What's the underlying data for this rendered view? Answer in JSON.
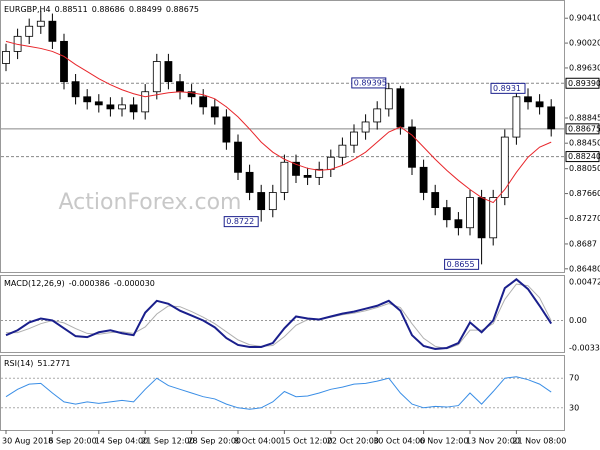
{
  "chart_data": {
    "type": "candlestick",
    "header": {
      "symbol": "EURGBP,H4",
      "ohlc": [
        0.88511,
        0.88686,
        0.88499,
        0.88675
      ]
    },
    "watermark": "ActionForex.com",
    "x": [
      "30 Aug 2018",
      null,
      null,
      null,
      "6 Sep 20:00",
      null,
      null,
      null,
      "14 Sep 04:00",
      null,
      null,
      null,
      "21 Sep 12:00",
      null,
      null,
      null,
      "28 Sep 20:00",
      null,
      null,
      null,
      "8 Oct 04:00",
      null,
      null,
      null,
      "15 Oct 12:00",
      null,
      null,
      null,
      "22 Oct 20:00",
      null,
      null,
      null,
      "30 Oct 04:00",
      null,
      null,
      null,
      "6 Nov 12:00",
      null,
      null,
      null,
      "13 Nov 20:00",
      null,
      null,
      null,
      "21 Nov 08:00",
      null,
      null,
      null
    ],
    "open": [
      0.897,
      0.89889,
      0.90126,
      0.90284,
      0.90363,
      0.90047,
      0.89415,
      0.89178,
      0.89099,
      0.89051,
      0.88988,
      0.89051,
      0.88941,
      0.89257,
      0.89731,
      0.89415,
      0.89257,
      0.89178,
      0.8902,
      0.88862,
      0.88467,
      0.87993,
      0.87677,
      0.87408,
      0.87677,
      0.88151,
      0.87945,
      0.87914,
      0.8804,
      0.8823,
      0.88419,
      0.88625,
      0.88783,
      0.88988,
      0.89304,
      0.88704,
      0.88072,
      0.87677,
      0.8744,
      0.8725,
      0.87124,
      0.87598,
      0.86966,
      0.87598,
      0.88546,
      0.89178,
      0.89099,
      0.8902
    ],
    "high": [
      0.90009,
      0.90246,
      0.90404,
      0.9053,
      0.90483,
      0.90167,
      0.89535,
      0.89298,
      0.89219,
      0.89171,
      0.89171,
      0.89171,
      0.89377,
      0.89851,
      0.89851,
      0.89535,
      0.89377,
      0.89298,
      0.8914,
      0.88982,
      0.88587,
      0.88113,
      0.87797,
      0.87797,
      0.88271,
      0.88271,
      0.88065,
      0.8816,
      0.8835,
      0.88539,
      0.88745,
      0.88903,
      0.89108,
      0.89395,
      0.8935,
      0.88824,
      0.88192,
      0.87797,
      0.8756,
      0.8737,
      0.87718,
      0.87718,
      0.87718,
      0.88666,
      0.89298,
      0.8931,
      0.89219,
      0.8914
    ],
    "low": [
      0.8958,
      0.89769,
      0.90006,
      0.90164,
      0.89927,
      0.89295,
      0.89058,
      0.88979,
      0.88931,
      0.88868,
      0.88868,
      0.88821,
      0.88821,
      0.89137,
      0.89295,
      0.89137,
      0.89058,
      0.889,
      0.88742,
      0.88347,
      0.87873,
      0.87557,
      0.8722,
      0.87288,
      0.87557,
      0.87825,
      0.87794,
      0.87794,
      0.8792,
      0.8811,
      0.88299,
      0.88505,
      0.88663,
      0.88868,
      0.88584,
      0.87952,
      0.87557,
      0.8732,
      0.8713,
      0.87004,
      0.87004,
      0.8655,
      0.86846,
      0.87478,
      0.88426,
      0.88979,
      0.889,
      0.88555
    ],
    "close": [
      0.89889,
      0.90126,
      0.90284,
      0.90363,
      0.90047,
      0.89415,
      0.89178,
      0.89099,
      0.89051,
      0.88988,
      0.89051,
      0.88941,
      0.89257,
      0.89731,
      0.89415,
      0.89257,
      0.89178,
      0.8902,
      0.88862,
      0.88467,
      0.87993,
      0.87677,
      0.87408,
      0.87677,
      0.88151,
      0.87945,
      0.87914,
      0.8804,
      0.8823,
      0.88419,
      0.88625,
      0.88783,
      0.88988,
      0.89304,
      0.88704,
      0.88072,
      0.87677,
      0.8744,
      0.8725,
      0.87124,
      0.87598,
      0.86966,
      0.87598,
      0.88546,
      0.89178,
      0.89099,
      0.8902,
      0.88675
    ],
    "ma": {
      "color": "#e8262b",
      "values": [
        0.90047,
        0.89999,
        0.89968,
        0.89936,
        0.89889,
        0.8981,
        0.89683,
        0.89573,
        0.89462,
        0.89367,
        0.89288,
        0.89225,
        0.89178,
        0.89209,
        0.89241,
        0.89257,
        0.89241,
        0.89209,
        0.89146,
        0.8902,
        0.88862,
        0.88672,
        0.88467,
        0.88309,
        0.88198,
        0.88119,
        0.88056,
        0.88024,
        0.8804,
        0.88103,
        0.88198,
        0.88309,
        0.88467,
        0.88625,
        0.88704,
        0.88577,
        0.88388,
        0.88198,
        0.88024,
        0.87866,
        0.87724,
        0.87598,
        0.87519,
        0.87724,
        0.87993,
        0.8823,
        0.88388,
        0.88467
      ]
    },
    "ylim": [
      0.8643,
      0.9068
    ],
    "yticks": [
      {
        "value": 0.9041,
        "label": "0.90410"
      },
      {
        "value": 0.9002,
        "label": "0.90020"
      },
      {
        "value": 0.8963,
        "label": "0.89630"
      },
      0.88845,
      {
        "value": 0.8845,
        "label": "0.88450"
      },
      {
        "value": 0.8805,
        "label": "0.88050"
      },
      {
        "value": 0.8766,
        "label": "0.87660"
      },
      {
        "value": 0.8727,
        "label": "0.87270"
      },
      0.8687,
      {
        "value": 0.8648,
        "label": "0.86480"
      }
    ],
    "levels": [
      {
        "value": 0.8939,
        "label": "0.89390",
        "style": "dashed"
      },
      {
        "value": 0.88675,
        "label": "0.88675",
        "style": "solid"
      },
      {
        "value": 0.8824,
        "label": "0.88240",
        "style": "dashed"
      }
    ],
    "annotations": [
      0.89395,
      0.8722,
      0.8931,
      0.8655
    ],
    "macd": {
      "title": "MACD(12,26,9)",
      "header": [
        {
          "value": -0.000386,
          "label": "-0.000386"
        },
        {
          "value": -3e-05,
          "label": "-0.000030"
        }
      ],
      "series": [
        {
          "color": "#1a1f8c",
          "values": [
            -0.00182,
            -0.00121,
            -0.00024,
            0.00024,
            0,
            -0.00097,
            -0.00194,
            -0.00206,
            -0.00146,
            -0.00121,
            -0.00158,
            -0.00182,
            0.00097,
            0.00243,
            0.00206,
            0.00121,
            0.00061,
            0,
            -0.00085,
            -0.00218,
            -0.00303,
            -0.00328,
            -0.00328,
            -0.00279,
            -0.00097,
            0.00049,
            0.00024,
            0.00012,
            0.00049,
            0.00085,
            0.00109,
            0.00146,
            0.00182,
            0.00243,
            0.00121,
            -0.00182,
            -0.00315,
            -0.00352,
            -0.0034,
            -0.00279,
            -0.00024,
            -0.00146,
            0,
            0.004,
            0.00509,
            0.00388,
            0.00182,
            -0.000386
          ]
        },
        {
          "color": "#b0b0b0",
          "values": [
            -0.0015,
            -0.0015,
            -0.001,
            -0.0004,
            0,
            -0.0003,
            -0.001,
            -0.0016,
            -0.0017,
            -0.0015,
            -0.0014,
            -0.0016,
            -0.0008,
            0.0008,
            0.0018,
            0.0017,
            0.0011,
            0.0004,
            -0.0004,
            -0.0014,
            -0.0024,
            -0.003,
            -0.0032,
            -0.0031,
            -0.002,
            -0.0006,
            0.0001,
            0.0002,
            0.0004,
            0.0007,
            0.0009,
            0.0012,
            0.0016,
            0.0021,
            0.0016,
            -0.0004,
            -0.0022,
            -0.0032,
            -0.0035,
            -0.003,
            -0.0012,
            -0.0012,
            -0.0004,
            0.0026,
            0.0045,
            0.0043,
            0.0028,
            -3e-05
          ]
        }
      ],
      "ylim": [
        -0.0039,
        0.0055
      ],
      "yticks": [
        0.004729,
        {
          "value": 0,
          "label": "0.00"
        },
        -0.003391
      ]
    },
    "rsi": {
      "title": "RSI(14)",
      "value": 51.2771,
      "color": "#3a8ee6",
      "values": [
        45,
        55,
        62,
        63,
        50,
        38,
        35,
        38,
        36,
        38,
        40,
        38,
        55,
        70,
        60,
        55,
        50,
        45,
        42,
        35,
        30,
        28,
        30,
        38,
        52,
        45,
        46,
        50,
        55,
        58,
        62,
        63,
        66,
        70,
        50,
        35,
        30,
        32,
        31,
        33,
        50,
        35,
        52,
        70,
        72,
        68,
        62,
        51.2771
      ],
      "ylim": [
        0,
        100
      ],
      "yticks": [
        70,
        30
      ]
    }
  }
}
